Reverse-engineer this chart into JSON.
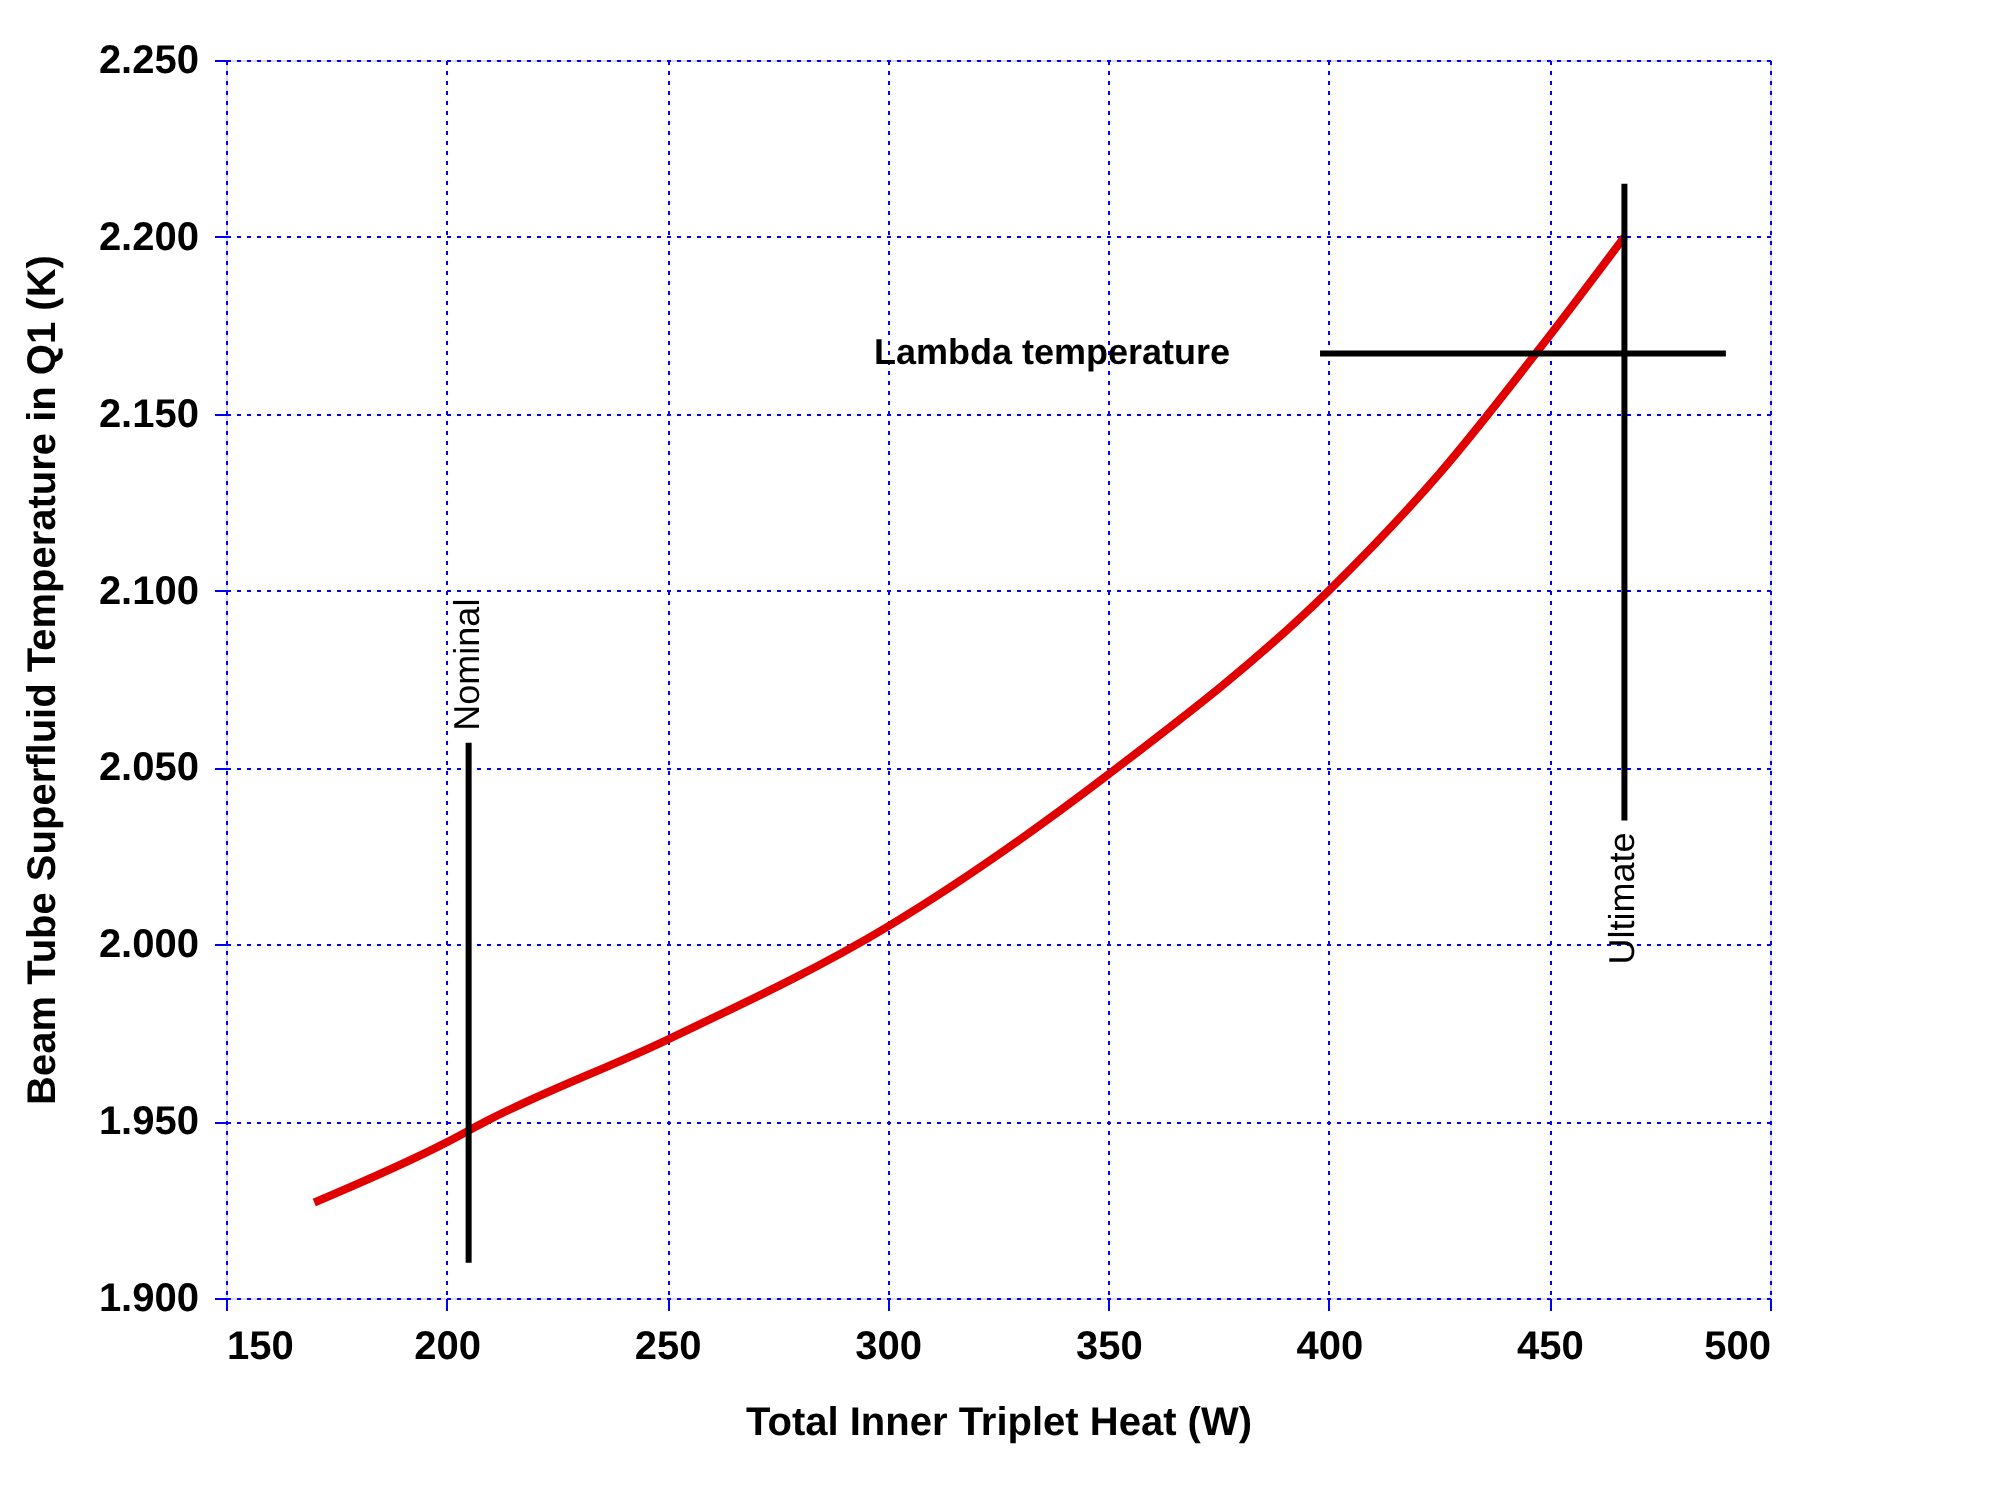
{
  "chart_data": {
    "type": "line",
    "xlabel": "Total Inner Triplet Heat (W)",
    "ylabel": "Beam Tube Superfluid Temperature in Q1 (K)",
    "xlim": [
      150,
      500
    ],
    "xticks": [
      150,
      200,
      250,
      300,
      350,
      400,
      450,
      500
    ],
    "ylim": [
      1.9,
      2.25
    ],
    "yticks": [
      {
        "value": 1.9,
        "label": "1.900"
      },
      {
        "value": 1.95,
        "label": "1.950"
      },
      {
        "value": 2.0,
        "label": "2.000"
      },
      {
        "value": 2.05,
        "label": "2.050"
      },
      {
        "value": 2.1,
        "label": "2.100"
      },
      {
        "value": 2.15,
        "label": "2.150"
      },
      {
        "value": 2.2,
        "label": "2.200"
      },
      {
        "value": 2.25,
        "label": "2.250"
      }
    ],
    "grid": true,
    "line_style": "solid",
    "marker": "none",
    "series": [
      {
        "color": "#e00000",
        "x": [
          170,
          200,
          209,
          250,
          300,
          350,
          400,
          425,
          450,
          467
        ],
        "values": [
          1.927,
          1.944,
          1.95,
          1.973,
          2.005,
          2.048,
          2.1,
          2.133,
          2.172,
          2.2
        ]
      },
      {
        "color": "#000000",
        "x": [
          205,
          205
        ],
        "values": [
          1.91,
          2.057
        ]
      },
      {
        "color": "#000000",
        "x": [
          467,
          467
        ],
        "values": [
          2.035,
          2.215
        ]
      },
      {
        "color": "#000000",
        "x": [
          398,
          490
        ],
        "values": [
          2.167,
          2.167
        ]
      }
    ],
    "annotations": [
      "Nominal",
      "Ultimate",
      "Lambda temperature"
    ]
  }
}
